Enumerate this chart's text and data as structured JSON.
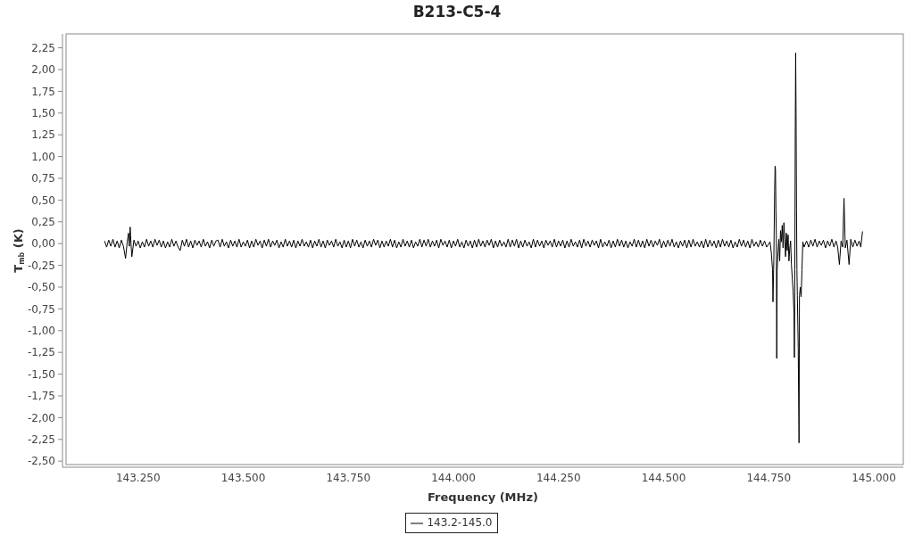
{
  "chart_data": {
    "type": "line",
    "title": "B213-C5-4",
    "xlabel": "Frequency (MHz)",
    "ylabel": "T$_{mb}$ (K)",
    "x": [
      143170,
      143175,
      143180,
      143185,
      143190,
      143195,
      143200,
      143205,
      143210,
      143215,
      143220,
      143224,
      143227,
      143229,
      143231,
      143233,
      143235,
      143240,
      143245,
      143250,
      143255,
      143260,
      143265,
      143270,
      143275,
      143280,
      143285,
      143290,
      143295,
      143300,
      143305,
      143310,
      143315,
      143320,
      143325,
      143330,
      143335,
      143340,
      143345,
      143350,
      143355,
      143360,
      143365,
      143370,
      143375,
      143380,
      143385,
      143390,
      143395,
      143400,
      143405,
      143410,
      143415,
      143420,
      143425,
      143430,
      143435,
      143440,
      143445,
      143450,
      143455,
      143460,
      143465,
      143470,
      143475,
      143480,
      143485,
      143490,
      143495,
      143500,
      143505,
      143510,
      143515,
      143520,
      143525,
      143530,
      143535,
      143540,
      143545,
      143550,
      143555,
      143560,
      143565,
      143570,
      143575,
      143580,
      143585,
      143590,
      143595,
      143600,
      143605,
      143610,
      143615,
      143620,
      143625,
      143630,
      143635,
      143640,
      143645,
      143650,
      143655,
      143660,
      143665,
      143670,
      143675,
      143680,
      143685,
      143690,
      143695,
      143700,
      143705,
      143710,
      143715,
      143720,
      143725,
      143730,
      143735,
      143740,
      143745,
      143750,
      143755,
      143760,
      143765,
      143770,
      143775,
      143780,
      143785,
      143790,
      143795,
      143800,
      143805,
      143810,
      143815,
      143820,
      143825,
      143830,
      143835,
      143840,
      143845,
      143850,
      143855,
      143860,
      143865,
      143870,
      143875,
      143880,
      143885,
      143890,
      143895,
      143900,
      143905,
      143910,
      143915,
      143920,
      143925,
      143930,
      143935,
      143940,
      143945,
      143950,
      143955,
      143960,
      143965,
      143970,
      143975,
      143980,
      143985,
      143990,
      143995,
      144000,
      144005,
      144010,
      144015,
      144020,
      144025,
      144030,
      144035,
      144040,
      144045,
      144050,
      144055,
      144060,
      144065,
      144070,
      144075,
      144080,
      144085,
      144090,
      144095,
      144100,
      144105,
      144110,
      144115,
      144120,
      144125,
      144130,
      144135,
      144140,
      144145,
      144150,
      144155,
      144160,
      144165,
      144170,
      144175,
      144180,
      144185,
      144190,
      144195,
      144200,
      144205,
      144210,
      144215,
      144220,
      144225,
      144230,
      144235,
      144240,
      144245,
      144250,
      144255,
      144260,
      144265,
      144270,
      144275,
      144280,
      144285,
      144290,
      144295,
      144300,
      144305,
      144310,
      144315,
      144320,
      144325,
      144330,
      144335,
      144340,
      144345,
      144350,
      144355,
      144360,
      144365,
      144370,
      144375,
      144380,
      144385,
      144390,
      144395,
      144400,
      144405,
      144410,
      144415,
      144420,
      144425,
      144430,
      144435,
      144440,
      144445,
      144450,
      144455,
      144460,
      144465,
      144470,
      144475,
      144480,
      144485,
      144490,
      144495,
      144500,
      144505,
      144510,
      144515,
      144520,
      144525,
      144530,
      144535,
      144540,
      144545,
      144550,
      144555,
      144560,
      144565,
      144570,
      144575,
      144580,
      144585,
      144590,
      144595,
      144600,
      144605,
      144610,
      144615,
      144620,
      144625,
      144630,
      144635,
      144640,
      144645,
      144650,
      144655,
      144660,
      144665,
      144670,
      144675,
      144680,
      144685,
      144690,
      144695,
      144700,
      144705,
      144710,
      144715,
      144720,
      144725,
      144730,
      144735,
      144740,
      144745,
      144753,
      144756,
      144759,
      144760,
      144762,
      144764,
      144765,
      144766,
      144767,
      144768,
      144769,
      144770,
      144772,
      144774,
      144776,
      144778,
      144780,
      144782,
      144784,
      144786,
      144788,
      144790,
      144792,
      144794,
      144796,
      144798,
      144800,
      144802,
      144804,
      144806,
      144808,
      144810,
      144811,
      144812,
      144813,
      144814,
      144815,
      144816,
      144817,
      144818,
      144820,
      144822,
      144823,
      144825,
      144827,
      144829,
      144831,
      144834,
      144840,
      144845,
      144850,
      144855,
      144860,
      144865,
      144870,
      144875,
      144880,
      144885,
      144890,
      144895,
      144900,
      144905,
      144910,
      144914,
      144918,
      144922,
      144926,
      144929,
      144932,
      144936,
      144941,
      144945,
      144950,
      144955,
      144960,
      144965,
      144969,
      144973
    ],
    "series": [
      {
        "name": "143.2-145.0",
        "color": "#000000",
        "values": [
          0.03,
          -0.04,
          0.04,
          -0.03,
          0.05,
          -0.04,
          0.03,
          -0.05,
          0.04,
          -0.03,
          -0.17,
          0.02,
          0.12,
          -0.03,
          0.19,
          0,
          -0.15,
          0.04,
          -0.03,
          0.03,
          -0.05,
          0.02,
          -0.04,
          0.05,
          -0.03,
          0.03,
          -0.04,
          0.05,
          -0.02,
          0.04,
          -0.04,
          0.03,
          -0.05,
          0.02,
          -0.04,
          0.05,
          -0.03,
          0.03,
          -0.04,
          -0.08,
          0.04,
          -0.03,
          0.05,
          -0.04,
          0.03,
          -0.05,
          0.04,
          -0.02,
          0.03,
          -0.04,
          0.05,
          -0.03,
          0.02,
          -0.05,
          0.04,
          -0.03,
          0.03,
          0.04,
          -0.04,
          0.05,
          -0.03,
          0.02,
          -0.05,
          0.04,
          -0.03,
          0.03,
          -0.04,
          0.05,
          -0.04,
          0.02,
          -0.03,
          0.04,
          -0.05,
          0.03,
          -0.04,
          0.05,
          -0.02,
          0.03,
          -0.05,
          0.04,
          -0.03,
          0.05,
          -0.04,
          0.03,
          -0.02,
          0.04,
          -0.05,
          0.02,
          -0.04,
          0.05,
          -0.03,
          0.03,
          -0.04,
          0.04,
          -0.05,
          0.03,
          -0.03,
          0.05,
          -0.03,
          0.02,
          -0.04,
          0.04,
          -0.05,
          0.03,
          -0.03,
          0.05,
          -0.04,
          0.03,
          -0.05,
          0.04,
          -0.02,
          0.03,
          -0.04,
          0.05,
          -0.03,
          0.02,
          -0.05,
          0.04,
          -0.04,
          0.03,
          -0.05,
          0.05,
          -0.03,
          0.04,
          -0.04,
          0.02,
          -0.05,
          0.04,
          -0.03,
          0.03,
          -0.04,
          0.05,
          -0.02,
          0.04,
          -0.05,
          0.03,
          -0.04,
          0.03,
          -0.03,
          0.05,
          -0.04,
          0.04,
          -0.05,
          0.02,
          -0.04,
          0.05,
          -0.03,
          0.03,
          -0.04,
          0.04,
          -0.05,
          0.02,
          -0.03,
          0.05,
          -0.04,
          0.04,
          -0.03,
          0.05,
          -0.04,
          0.03,
          -0.03,
          0.04,
          -0.05,
          0.05,
          -0.02,
          0.03,
          -0.04,
          0.04,
          -0.05,
          0.03,
          -0.03,
          0.05,
          -0.04,
          0.02,
          -0.05,
          0.04,
          -0.03,
          0.03,
          -0.05,
          0.04,
          -0.04,
          0.05,
          -0.03,
          0.03,
          -0.04,
          0.04,
          -0.02,
          0.05,
          -0.05,
          0.03,
          -0.04,
          0.04,
          -0.03,
          0.02,
          -0.04,
          0.05,
          -0.04,
          0.04,
          -0.03,
          0.05,
          -0.05,
          0.03,
          -0.04,
          0.04,
          -0.03,
          0.02,
          -0.05,
          0.05,
          -0.04,
          0.04,
          -0.03,
          0.03,
          -0.05,
          0.04,
          -0.02,
          0.03,
          -0.04,
          0.05,
          -0.04,
          0.03,
          -0.03,
          0.04,
          -0.05,
          0.03,
          -0.04,
          0.05,
          -0.03,
          0.02,
          -0.04,
          0.04,
          -0.05,
          0.05,
          -0.03,
          0.03,
          -0.04,
          0.04,
          -0.02,
          0.03,
          -0.05,
          0.05,
          -0.04,
          0.02,
          -0.03,
          0.04,
          -0.05,
          0.03,
          -0.04,
          0.05,
          -0.03,
          0.04,
          -0.04,
          0.03,
          -0.05,
          0.02,
          -0.03,
          0.05,
          -0.04,
          0.04,
          -0.04,
          0.03,
          -0.05,
          0.05,
          -0.03,
          0.04,
          -0.04,
          0.03,
          -0.02,
          0.05,
          -0.05,
          0.03,
          -0.04,
          0.04,
          -0.03,
          0.05,
          -0.04,
          0.02,
          -0.05,
          0.03,
          -0.03,
          0.04,
          -0.05,
          0.04,
          -0.04,
          0.05,
          -0.03,
          0.02,
          -0.04,
          0.03,
          -0.05,
          0.05,
          -0.04,
          0.04,
          -0.03,
          0.03,
          -0.05,
          0.04,
          -0.04,
          0.05,
          -0.03,
          0.03,
          -0.04,
          0.04,
          -0.05,
          0.02,
          -0.04,
          0.05,
          -0.03,
          0.04,
          -0.04,
          0.03,
          -0.05,
          0.05,
          -0.03,
          0.02,
          -0.04,
          0.04,
          -0.03,
          0.03,
          -0.04,
          0.02,
          -0.1,
          -0.3,
          -0.67,
          -0.2,
          0.6,
          0.89,
          0.85,
          0.4,
          0.1,
          -1.32,
          -0.3,
          -0.1,
          0.05,
          -0.2,
          0.15,
          0.02,
          0.21,
          -0.05,
          0.24,
          0.05,
          -0.15,
          0.12,
          -0.08,
          0.1,
          -0.2,
          -0.05,
          0.03,
          -0.25,
          -0.4,
          -0.55,
          -0.8,
          -1.31,
          -0.3,
          1.2,
          2.19,
          1.5,
          0.4,
          -0.3,
          -0.6,
          -1.2,
          -2.29,
          -0.6,
          -0.5,
          -0.61,
          -0.3,
          0.02,
          -0.04,
          0.03,
          -0.04,
          0.04,
          -0.03,
          0.05,
          -0.04,
          0.03,
          -0.02,
          0.04,
          -0.05,
          0.03,
          -0.03,
          0.05,
          -0.04,
          0.03,
          -0.04,
          -0.24,
          0.03,
          -0.04,
          0.52,
          -0.05,
          0.04,
          -0.24,
          0.05,
          -0.04,
          0.04,
          -0.03,
          0.03,
          -0.04,
          0.14
        ]
      }
    ],
    "xlim": [
      143070,
      145070
    ],
    "ylim": [
      -2.57,
      2.41
    ],
    "xticks": [
      {
        "value": 143250,
        "label": "143.250"
      },
      {
        "value": 143500,
        "label": "143.500"
      },
      {
        "value": 143750,
        "label": "143.750"
      },
      {
        "value": 144000,
        "label": "144.000"
      },
      {
        "value": 144250,
        "label": "144.250"
      },
      {
        "value": 144500,
        "label": "144.500"
      },
      {
        "value": 144750,
        "label": "144.750"
      },
      {
        "value": 145000,
        "label": "145.000"
      }
    ],
    "yticks": [
      {
        "value": -2.5,
        "label": "-2,50"
      },
      {
        "value": -2.25,
        "label": "-2,25"
      },
      {
        "value": -2,
        "label": "-2,00"
      },
      {
        "value": -1.75,
        "label": "-1,75"
      },
      {
        "value": -1.5,
        "label": "-1,50"
      },
      {
        "value": -1.25,
        "label": "-1,25"
      },
      {
        "value": -1,
        "label": "-1,00"
      },
      {
        "value": -0.75,
        "label": "-0,75"
      },
      {
        "value": -0.5,
        "label": "-0,50"
      },
      {
        "value": -0.25,
        "label": "-0,25"
      },
      {
        "value": 0,
        "label": "0,00"
      },
      {
        "value": 0.25,
        "label": "0,25"
      },
      {
        "value": 0.5,
        "label": "0,50"
      },
      {
        "value": 0.75,
        "label": "0,75"
      },
      {
        "value": 1,
        "label": "1,00"
      },
      {
        "value": 1.25,
        "label": "1,25"
      },
      {
        "value": 1.5,
        "label": "1,50"
      },
      {
        "value": 1.75,
        "label": "1,75"
      },
      {
        "value": 2,
        "label": "2,00"
      },
      {
        "value": 2.25,
        "label": "2,25"
      }
    ],
    "legend": "bottom"
  }
}
